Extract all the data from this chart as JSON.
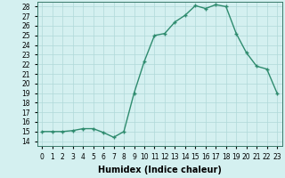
{
  "x": [
    0,
    1,
    2,
    3,
    4,
    5,
    6,
    7,
    8,
    9,
    10,
    11,
    12,
    13,
    14,
    15,
    16,
    17,
    18,
    19,
    20,
    21,
    22,
    23
  ],
  "y": [
    15,
    15,
    15,
    15.1,
    15.3,
    15.3,
    14.9,
    14.4,
    15,
    19,
    22.3,
    25,
    25.2,
    26.4,
    27.1,
    28.1,
    27.8,
    28.2,
    28.0,
    25.2,
    23.2,
    21.8,
    21.5,
    19.0
  ],
  "line_color": "#2e8b6e",
  "marker": "+",
  "marker_size": 3,
  "bg_color": "#d4f0f0",
  "grid_color": "#b0d8d8",
  "xlabel": "Humidex (Indice chaleur)",
  "ylim": [
    13.5,
    28.5
  ],
  "xlim": [
    -0.5,
    23.5
  ],
  "yticks": [
    14,
    15,
    16,
    17,
    18,
    19,
    20,
    21,
    22,
    23,
    24,
    25,
    26,
    27,
    28
  ],
  "xticks": [
    0,
    1,
    2,
    3,
    4,
    5,
    6,
    7,
    8,
    9,
    10,
    11,
    12,
    13,
    14,
    15,
    16,
    17,
    18,
    19,
    20,
    21,
    22,
    23
  ],
  "xtick_labels": [
    "0",
    "1",
    "2",
    "3",
    "4",
    "5",
    "6",
    "7",
    "8",
    "9",
    "10",
    "11",
    "12",
    "13",
    "14",
    "15",
    "16",
    "17",
    "18",
    "19",
    "20",
    "21",
    "22",
    "23"
  ],
  "xlabel_fontsize": 7,
  "tick_fontsize": 5.5,
  "line_width": 1.0,
  "marker_edge_width": 1.0
}
